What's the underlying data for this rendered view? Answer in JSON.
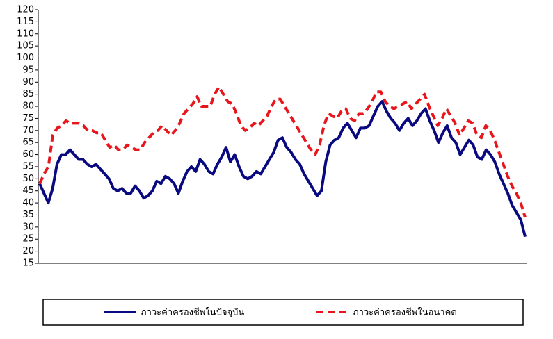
{
  "chart_data": {
    "type": "line",
    "series": [
      {
        "name": "ภาวะค่าครองชีพในปัจจุบัน",
        "color": "#0a0a80",
        "dash": false,
        "values": [
          48,
          44,
          40,
          46,
          56,
          60,
          60,
          62,
          60,
          58,
          58,
          56,
          55,
          56,
          54,
          52,
          50,
          46,
          45,
          46,
          44,
          44,
          47,
          45,
          42,
          43,
          45,
          49,
          48,
          51,
          50,
          48,
          44,
          49,
          53,
          55,
          53,
          58,
          56,
          53,
          52,
          56,
          59,
          63,
          57,
          60,
          55,
          51,
          50,
          51,
          53,
          52,
          55,
          58,
          61,
          66,
          67,
          63,
          61,
          58,
          56,
          52,
          49,
          46,
          43,
          45,
          57,
          64,
          66,
          67,
          71,
          73,
          70,
          67,
          71,
          71,
          72,
          76,
          80,
          82,
          78,
          75,
          73,
          70,
          73,
          75,
          72,
          74,
          77,
          79,
          74,
          70,
          65,
          69,
          72,
          67,
          65,
          60,
          63,
          66,
          64,
          59,
          58,
          62,
          60,
          57,
          52,
          48,
          44,
          39,
          36,
          33,
          26
        ]
      },
      {
        "name": "ภาวะค่าครองชีพในอนาคต",
        "color": "#e8161c",
        "dash": true,
        "values": [
          48,
          52,
          55,
          68,
          71,
          72,
          74,
          73,
          73,
          73,
          72,
          70,
          70,
          69,
          69,
          66,
          63,
          64,
          62,
          62,
          64,
          63,
          62,
          62,
          65,
          67,
          69,
          70,
          72,
          70,
          68,
          70,
          73,
          77,
          79,
          81,
          84,
          80,
          80,
          80,
          85,
          88,
          85,
          82,
          81,
          77,
          72,
          70,
          71,
          73,
          72,
          74,
          76,
          80,
          83,
          83,
          80,
          77,
          74,
          71,
          68,
          65,
          62,
          60,
          64,
          72,
          77,
          76,
          75,
          78,
          79,
          75,
          74,
          77,
          77,
          79,
          82,
          86,
          86,
          82,
          80,
          79,
          80,
          81,
          82,
          79,
          81,
          83,
          85,
          80,
          76,
          72,
          75,
          79,
          76,
          73,
          68,
          71,
          74,
          73,
          68,
          67,
          72,
          70,
          66,
          61,
          56,
          51,
          47,
          44,
          40,
          34
        ]
      }
    ],
    "ylim": [
      15,
      120
    ],
    "yticks": [
      15,
      20,
      25,
      30,
      35,
      40,
      45,
      50,
      55,
      60,
      65,
      70,
      75,
      80,
      85,
      90,
      95,
      100,
      105,
      110,
      115,
      120
    ],
    "grid": false
  }
}
